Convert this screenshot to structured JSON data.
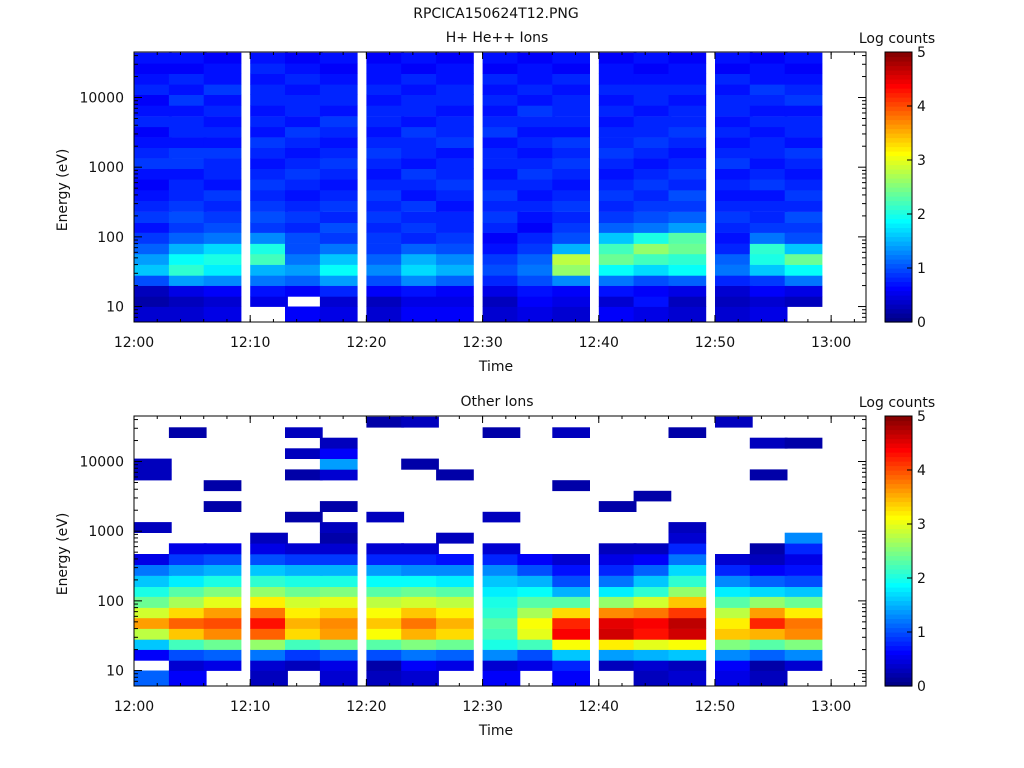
{
  "figure": {
    "title": "RPCICA150624T12.PNG"
  },
  "chart_data": [
    {
      "type": "heatmap",
      "title": "H+ He++ Ions",
      "xlabel": "Time",
      "ylabel": "Energy (eV)",
      "y_scale": "log",
      "ylim": [
        6,
        45000
      ],
      "xlim": [
        "12:00",
        "13:03"
      ],
      "x_ticks": [
        "12:00",
        "12:10",
        "12:20",
        "12:30",
        "12:40",
        "12:50",
        "13:00"
      ],
      "y_ticks": [
        "10",
        "100",
        "1000",
        "10000"
      ],
      "colorbar": {
        "label": "Log counts",
        "range": [
          0,
          5
        ],
        "ticks": [
          "0",
          "1",
          "2",
          "3",
          "4",
          "5"
        ]
      },
      "x_columns": [
        "12:00",
        "12:03",
        "12:06",
        "12:10",
        "12:13",
        "12:16",
        "12:20",
        "12:23",
        "12:26",
        "12:30",
        "12:33",
        "12:36",
        "12:40",
        "12:43",
        "12:46",
        "12:50",
        "12:53",
        "12:56"
      ],
      "y_bins": [
        [
          6,
          10
        ],
        [
          10,
          14
        ],
        [
          14,
          20
        ],
        [
          20,
          28
        ],
        [
          28,
          40
        ],
        [
          40,
          57
        ],
        [
          57,
          80
        ],
        [
          80,
          115
        ],
        [
          115,
          160
        ],
        [
          160,
          230
        ],
        [
          230,
          330
        ],
        [
          330,
          470
        ],
        [
          470,
          670
        ],
        [
          670,
          950
        ],
        [
          950,
          1350
        ],
        [
          1350,
          1900
        ],
        [
          1900,
          2700
        ],
        [
          2700,
          3800
        ],
        [
          3800,
          5400
        ],
        [
          5400,
          7700
        ],
        [
          7700,
          11000
        ],
        [
          11000,
          15500
        ],
        [
          15500,
          22000
        ],
        [
          22000,
          31000
        ],
        [
          31000,
          44000
        ]
      ],
      "column_levels": [
        [
          0.4,
          0.2,
          0.3,
          1.0,
          1.6,
          1.4,
          1.1,
          0.9,
          0.7,
          0.9,
          0.8,
          0.7,
          0.6,
          0.7,
          0.9,
          0.8,
          0.7,
          0.6,
          0.8,
          0.7,
          0.6,
          0.8,
          0.7,
          0.6,
          0.7
        ],
        [
          0.4,
          0.3,
          0.5,
          1.4,
          2.1,
          1.9,
          1.5,
          1.1,
          0.9,
          1.0,
          0.9,
          0.8,
          0.8,
          0.7,
          0.9,
          0.9,
          0.7,
          0.8,
          0.8,
          0.7,
          0.9,
          0.7,
          0.8,
          0.6,
          0.7
        ],
        [
          0.5,
          0.4,
          0.6,
          1.3,
          1.8,
          2.0,
          1.7,
          1.2,
          1.0,
          0.9,
          0.8,
          0.9,
          0.7,
          0.8,
          0.8,
          0.9,
          0.7,
          0.8,
          0.7,
          0.8,
          0.7,
          0.9,
          0.7,
          0.7,
          0.6
        ],
        [
          null,
          0.5,
          0.7,
          1.2,
          1.5,
          2.2,
          2.0,
          1.3,
          0.9,
          1.0,
          0.9,
          0.8,
          0.9,
          0.8,
          0.7,
          0.8,
          0.9,
          0.7,
          0.8,
          0.7,
          0.8,
          0.8,
          0.7,
          0.8,
          0.7
        ],
        [
          0.6,
          null,
          0.6,
          1.1,
          1.4,
          1.2,
          1.0,
          1.0,
          0.8,
          0.9,
          0.8,
          0.7,
          0.8,
          0.9,
          0.8,
          0.7,
          0.8,
          0.9,
          0.7,
          0.8,
          0.8,
          0.7,
          0.8,
          0.7,
          0.6
        ],
        [
          0.5,
          0.4,
          0.8,
          1.4,
          1.9,
          1.6,
          1.2,
          0.9,
          1.0,
          0.8,
          0.9,
          0.8,
          0.7,
          0.8,
          0.9,
          0.8,
          0.7,
          0.8,
          0.9,
          0.7,
          0.8,
          0.8,
          0.7,
          0.6,
          0.7
        ],
        [
          0.4,
          0.3,
          0.6,
          1.0,
          1.3,
          1.1,
          0.9,
          0.9,
          0.8,
          0.9,
          0.8,
          0.9,
          0.8,
          0.7,
          0.8,
          0.9,
          0.8,
          0.7,
          0.8,
          0.8,
          0.7,
          0.8,
          0.7,
          0.7,
          0.6
        ],
        [
          0.6,
          0.5,
          0.7,
          1.3,
          1.7,
          1.5,
          1.1,
          0.8,
          0.9,
          0.8,
          0.9,
          0.7,
          0.8,
          0.9,
          0.7,
          0.8,
          0.8,
          0.9,
          0.7,
          0.8,
          0.8,
          0.7,
          0.8,
          0.6,
          0.7
        ],
        [
          0.6,
          0.5,
          0.6,
          1.1,
          1.5,
          1.3,
          1.0,
          0.9,
          0.8,
          0.8,
          0.7,
          0.8,
          0.9,
          0.8,
          0.8,
          0.7,
          0.9,
          0.8,
          0.8,
          0.7,
          0.8,
          0.8,
          0.7,
          0.7,
          0.6
        ],
        [
          0.4,
          0.3,
          0.5,
          0.8,
          1.0,
          0.9,
          0.7,
          0.6,
          0.8,
          0.9,
          0.8,
          0.9,
          0.8,
          0.7,
          0.8,
          0.8,
          0.7,
          0.9,
          0.8,
          0.7,
          0.8,
          0.7,
          0.8,
          0.6,
          0.7
        ],
        [
          0.5,
          0.6,
          0.7,
          1.0,
          1.2,
          1.1,
          0.9,
          0.8,
          0.6,
          0.7,
          0.8,
          0.7,
          0.8,
          0.9,
          0.8,
          0.7,
          0.8,
          0.7,
          0.8,
          0.9,
          0.7,
          0.8,
          0.7,
          0.7,
          0.6
        ],
        [
          0.4,
          0.5,
          0.6,
          1.3,
          2.6,
          2.8,
          1.5,
          1.0,
          0.9,
          0.8,
          0.9,
          0.8,
          0.7,
          0.8,
          0.9,
          0.8,
          0.9,
          0.7,
          0.8,
          0.8,
          0.8,
          0.7,
          0.8,
          0.6,
          0.7
        ],
        [
          0.6,
          0.4,
          0.7,
          1.2,
          1.9,
          2.4,
          2.2,
          1.6,
          1.1,
          0.9,
          0.8,
          0.9,
          0.8,
          0.7,
          0.8,
          0.9,
          0.8,
          0.8,
          0.7,
          0.8,
          0.7,
          0.8,
          0.7,
          0.7,
          0.6
        ],
        [
          0.5,
          0.7,
          0.6,
          1.0,
          1.7,
          2.2,
          2.6,
          2.0,
          1.2,
          1.0,
          0.9,
          0.8,
          0.9,
          0.8,
          0.7,
          0.8,
          0.9,
          0.8,
          0.8,
          0.7,
          0.8,
          0.8,
          0.7,
          0.6,
          0.7
        ],
        [
          0.4,
          0.3,
          0.5,
          1.1,
          1.9,
          2.1,
          2.4,
          2.3,
          1.4,
          1.1,
          0.9,
          1.0,
          0.8,
          0.9,
          0.8,
          0.7,
          0.8,
          0.9,
          0.8,
          0.8,
          0.7,
          0.8,
          0.7,
          0.7,
          0.6
        ],
        [
          0.4,
          0.3,
          0.4,
          0.8,
          1.2,
          1.1,
          0.8,
          0.7,
          0.8,
          0.9,
          0.8,
          0.7,
          0.8,
          0.7,
          0.9,
          0.8,
          0.7,
          0.8,
          0.7,
          0.8,
          0.8,
          0.7,
          0.8,
          0.6,
          0.7
        ],
        [
          0.5,
          0.4,
          0.6,
          0.9,
          1.6,
          2.0,
          2.1,
          1.2,
          0.9,
          0.8,
          0.8,
          0.7,
          0.9,
          0.8,
          0.7,
          0.8,
          0.8,
          0.7,
          0.8,
          0.7,
          0.8,
          0.9,
          0.7,
          0.7,
          0.6
        ],
        [
          null,
          0.3,
          0.5,
          1.2,
          1.9,
          2.4,
          1.6,
          1.0,
          0.9,
          1.0,
          0.8,
          0.9,
          0.8,
          0.7,
          0.8,
          0.9,
          0.7,
          0.8,
          0.8,
          0.7,
          0.9,
          0.8,
          0.7,
          0.6,
          0.7
        ]
      ]
    },
    {
      "type": "heatmap",
      "title": "Other Ions",
      "xlabel": "Time",
      "ylabel": "Energy (eV)",
      "y_scale": "log",
      "ylim": [
        6,
        45000
      ],
      "xlim": [
        "12:00",
        "13:03"
      ],
      "x_ticks": [
        "12:00",
        "12:10",
        "12:20",
        "12:30",
        "12:40",
        "12:50",
        "13:00"
      ],
      "y_ticks": [
        "10",
        "100",
        "1000",
        "10000"
      ],
      "colorbar": {
        "label": "Log counts",
        "range": [
          0,
          5
        ],
        "ticks": [
          "0",
          "1",
          "2",
          "3",
          "4",
          "5"
        ]
      },
      "x_columns": [
        "12:00",
        "12:03",
        "12:06",
        "12:10",
        "12:13",
        "12:16",
        "12:20",
        "12:23",
        "12:26",
        "12:30",
        "12:33",
        "12:36",
        "12:40",
        "12:43",
        "12:46",
        "12:50",
        "12:53",
        "12:56"
      ],
      "y_bins": [
        [
          6,
          10
        ],
        [
          10,
          14
        ],
        [
          14,
          20
        ],
        [
          20,
          28
        ],
        [
          28,
          40
        ],
        [
          40,
          57
        ],
        [
          57,
          80
        ],
        [
          80,
          115
        ],
        [
          115,
          160
        ],
        [
          160,
          230
        ],
        [
          230,
          330
        ],
        [
          330,
          470
        ],
        [
          470,
          670
        ],
        [
          670,
          950
        ],
        [
          950,
          1350
        ],
        [
          1350,
          1900
        ],
        [
          1900,
          2700
        ],
        [
          2700,
          3800
        ],
        [
          3800,
          5400
        ],
        [
          5400,
          7700
        ],
        [
          7700,
          11000
        ],
        [
          11000,
          15500
        ],
        [
          15500,
          22000
        ],
        [
          22000,
          31000
        ],
        [
          31000,
          44000
        ]
      ],
      "column_levels": [
        [
          1.1,
          null,
          0.6,
          1.6,
          2.8,
          3.6,
          2.9,
          2.4,
          2.0,
          1.6,
          1.2,
          0.5,
          null,
          null,
          0.3,
          null,
          null,
          null,
          null,
          0.3,
          0.3,
          null,
          null,
          null,
          null
        ],
        [
          0.6,
          0.4,
          1.0,
          2.2,
          3.4,
          3.9,
          3.3,
          2.7,
          2.3,
          1.8,
          1.4,
          0.9,
          0.5,
          null,
          null,
          null,
          null,
          null,
          null,
          null,
          null,
          null,
          null,
          0.2,
          null
        ],
        [
          null,
          0.5,
          1.1,
          2.4,
          3.7,
          4.0,
          3.6,
          3.0,
          2.5,
          2.0,
          1.5,
          1.0,
          0.5,
          null,
          null,
          null,
          0.2,
          null,
          0.2,
          null,
          null,
          null,
          null,
          null,
          null
        ],
        [
          0.3,
          0.4,
          1.2,
          2.6,
          3.9,
          4.3,
          3.8,
          3.2,
          2.6,
          2.1,
          1.6,
          1.0,
          0.5,
          0.3,
          null,
          null,
          null,
          null,
          null,
          null,
          null,
          null,
          null,
          null,
          null
        ],
        [
          null,
          0.3,
          0.9,
          2.2,
          3.3,
          3.5,
          3.2,
          2.9,
          2.4,
          2.0,
          1.5,
          0.9,
          0.4,
          null,
          null,
          0.2,
          null,
          null,
          null,
          0.2,
          null,
          0.3,
          null,
          0.3,
          null
        ],
        [
          0.4,
          0.5,
          1.1,
          2.4,
          3.6,
          3.7,
          3.4,
          3.0,
          2.5,
          2.0,
          1.5,
          0.9,
          0.4,
          0.2,
          0.3,
          null,
          0.2,
          null,
          null,
          0.4,
          1.4,
          0.6,
          0.3,
          null,
          null
        ],
        [
          0.3,
          0.2,
          1.0,
          2.3,
          3.1,
          3.4,
          3.1,
          2.8,
          2.3,
          1.9,
          1.4,
          0.8,
          0.4,
          null,
          null,
          0.3,
          null,
          null,
          null,
          null,
          null,
          null,
          null,
          null,
          0.2
        ],
        [
          0.4,
          0.6,
          1.2,
          2.5,
          3.5,
          3.8,
          3.4,
          2.9,
          2.4,
          1.9,
          1.3,
          0.8,
          0.4,
          null,
          null,
          null,
          null,
          null,
          null,
          null,
          0.2,
          null,
          null,
          null,
          0.3
        ],
        [
          null,
          0.5,
          1.1,
          2.4,
          3.3,
          3.5,
          3.2,
          2.8,
          2.3,
          1.8,
          1.3,
          0.7,
          null,
          0.3,
          null,
          null,
          null,
          null,
          null,
          0.2,
          null,
          null,
          null,
          null,
          null
        ],
        [
          0.6,
          0.4,
          1.3,
          2.0,
          2.2,
          2.3,
          2.1,
          2.0,
          1.8,
          1.6,
          1.3,
          0.8,
          0.4,
          null,
          null,
          0.3,
          null,
          null,
          null,
          null,
          null,
          null,
          null,
          0.2,
          null
        ],
        [
          null,
          0.5,
          1.0,
          2.2,
          3.0,
          3.1,
          2.7,
          2.3,
          1.9,
          1.5,
          1.0,
          0.6,
          null,
          null,
          null,
          null,
          null,
          null,
          null,
          null,
          null,
          null,
          null,
          null,
          null
        ],
        [
          0.6,
          0.8,
          1.6,
          3.1,
          4.4,
          4.2,
          3.3,
          2.3,
          1.5,
          1.0,
          0.7,
          0.4,
          null,
          null,
          null,
          null,
          null,
          null,
          0.2,
          null,
          null,
          null,
          null,
          0.3,
          null
        ],
        [
          null,
          0.3,
          1.4,
          3.2,
          4.6,
          4.5,
          3.7,
          2.6,
          1.8,
          1.2,
          0.8,
          0.5,
          0.3,
          null,
          null,
          null,
          0.2,
          null,
          null,
          null,
          null,
          null,
          null,
          null,
          null
        ],
        [
          0.3,
          0.4,
          1.5,
          3.0,
          4.3,
          4.4,
          3.8,
          2.9,
          2.1,
          1.6,
          1.1,
          0.6,
          0.3,
          null,
          null,
          null,
          null,
          0.2,
          null,
          null,
          null,
          null,
          null,
          null,
          null
        ],
        [
          0.4,
          0.3,
          1.6,
          3.1,
          4.6,
          4.7,
          4.1,
          3.4,
          2.6,
          2.1,
          1.7,
          1.2,
          0.8,
          0.4,
          0.3,
          null,
          null,
          null,
          null,
          null,
          null,
          null,
          null,
          0.2,
          null
        ],
        [
          0.5,
          0.6,
          1.3,
          2.5,
          3.4,
          3.2,
          2.8,
          2.3,
          1.8,
          1.3,
          0.8,
          0.4,
          null,
          null,
          null,
          null,
          null,
          null,
          null,
          null,
          null,
          null,
          null,
          null,
          0.3
        ],
        [
          0.3,
          0.2,
          1.1,
          2.3,
          3.5,
          4.2,
          3.6,
          2.6,
          1.7,
          1.1,
          0.6,
          0.3,
          0.2,
          null,
          null,
          null,
          null,
          null,
          null,
          0.2,
          null,
          null,
          0.3,
          null,
          null
        ],
        [
          null,
          0.4,
          1.3,
          2.5,
          3.7,
          3.8,
          3.2,
          2.4,
          1.6,
          1.0,
          0.7,
          0.5,
          0.8,
          1.3,
          null,
          null,
          null,
          null,
          null,
          null,
          null,
          null,
          0.2,
          null,
          null
        ]
      ]
    }
  ]
}
